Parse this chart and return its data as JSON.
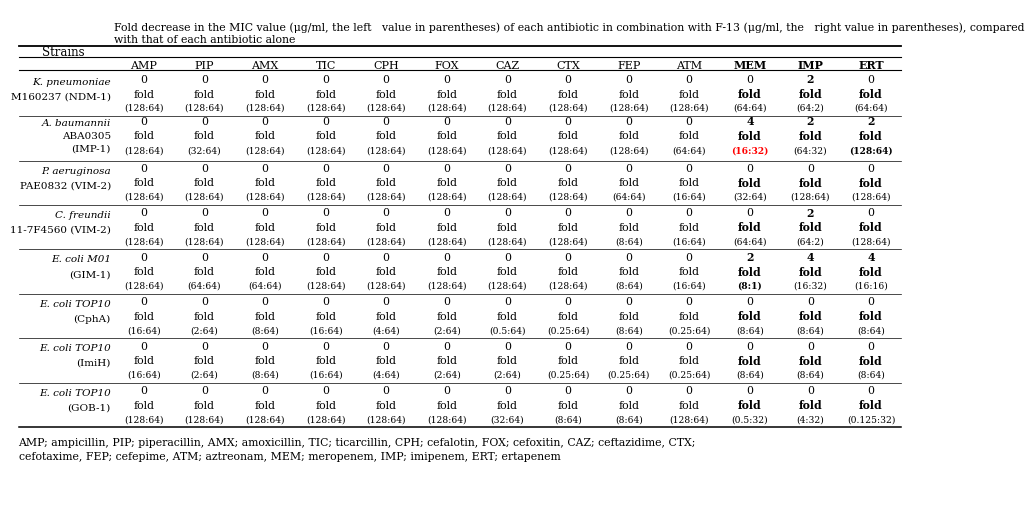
{
  "title_line1": "Fold decrease in the MIC value (μg/ml, the left   value in parentheses) of each antibiotic in combination with F-13 (μg/ml, the   right value in parentheses), compared",
  "title_line2": "with that of each antibiotic alone",
  "col_header": [
    "AMP",
    "PIP",
    "AMX",
    "TIC",
    "CPH",
    "FOX",
    "CAZ",
    "CTX",
    "FEP",
    "ATM",
    "MEM",
    "IMP",
    "ERT"
  ],
  "bold_cols": [
    "MEM",
    "IMP",
    "ERT"
  ],
  "strains": [
    [
      "K. pneumoniae",
      "M160237 (NDM-1)"
    ],
    [
      "A. baumannii",
      "ABA0305",
      "(IMP-1)"
    ],
    [
      "P. aeruginosa",
      "PAE0832 (VIM-2)"
    ],
    [
      "C. freundii",
      "11-7F4560 (VIM-2)"
    ],
    [
      "E. coli M01",
      "(GIM-1)"
    ],
    [
      "E. coli TOP10",
      "(CphA)"
    ],
    [
      "E. coli TOP10",
      "(ImiH)"
    ],
    [
      "E. coli TOP10",
      "(GOB-1)"
    ]
  ],
  "strain_italic": [
    [
      true,
      false
    ],
    [
      true,
      false,
      false
    ],
    [
      true,
      false
    ],
    [
      true,
      false
    ],
    [
      true,
      false
    ],
    [
      true,
      false
    ],
    [
      true,
      false
    ],
    [
      true,
      false
    ]
  ],
  "rows": [
    {
      "fold": [
        "0",
        "0",
        "0",
        "0",
        "0",
        "0",
        "0",
        "0",
        "0",
        "0",
        "0",
        "2",
        "0"
      ],
      "mic": [
        "(128:64)",
        "(128:64)",
        "(128:64)",
        "(128:64)",
        "(128:64)",
        "(128:64)",
        "(128:64)",
        "(128:64)",
        "(128:64)",
        "(128:64)",
        "(64:64)",
        "(64:2)",
        "(64:64)"
      ],
      "bold_fold": [
        false,
        false,
        false,
        false,
        false,
        false,
        false,
        false,
        false,
        false,
        false,
        true,
        false
      ],
      "bold_mic": [
        false,
        false,
        false,
        false,
        false,
        false,
        false,
        false,
        false,
        false,
        false,
        false,
        false
      ],
      "red_fold": [
        false,
        false,
        false,
        false,
        false,
        false,
        false,
        false,
        false,
        false,
        false,
        false,
        false
      ],
      "red_mic": [
        false,
        false,
        false,
        false,
        false,
        false,
        false,
        false,
        false,
        false,
        false,
        false,
        false
      ]
    },
    {
      "fold": [
        "0",
        "0",
        "0",
        "0",
        "0",
        "0",
        "0",
        "0",
        "0",
        "0",
        "4",
        "2",
        "2"
      ],
      "mic": [
        "(128:64)",
        "(32:64)",
        "(128:64)",
        "(128:64)",
        "(128:64)",
        "(128:64)",
        "(128:64)",
        "(128:64)",
        "(128:64)",
        "(64:64)",
        "(16:32)",
        "(64:32)",
        "(128:64)"
      ],
      "bold_fold": [
        false,
        false,
        false,
        false,
        false,
        false,
        false,
        false,
        false,
        false,
        true,
        true,
        true
      ],
      "bold_mic": [
        false,
        false,
        false,
        false,
        false,
        false,
        false,
        false,
        false,
        false,
        true,
        false,
        true
      ],
      "red_fold": [
        false,
        false,
        false,
        false,
        false,
        false,
        false,
        false,
        false,
        false,
        false,
        false,
        false
      ],
      "red_mic": [
        false,
        false,
        false,
        false,
        false,
        false,
        false,
        false,
        false,
        false,
        true,
        false,
        false
      ]
    },
    {
      "fold": [
        "0",
        "0",
        "0",
        "0",
        "0",
        "0",
        "0",
        "0",
        "0",
        "0",
        "0",
        "0",
        "0"
      ],
      "mic": [
        "(128:64)",
        "(128:64)",
        "(128:64)",
        "(128:64)",
        "(128:64)",
        "(128:64)",
        "(128:64)",
        "(128:64)",
        "(64:64)",
        "(16:64)",
        "(32:64)",
        "(128:64)",
        "(128:64)"
      ],
      "bold_fold": [
        false,
        false,
        false,
        false,
        false,
        false,
        false,
        false,
        false,
        false,
        false,
        false,
        false
      ],
      "bold_mic": [
        false,
        false,
        false,
        false,
        false,
        false,
        false,
        false,
        false,
        false,
        false,
        false,
        false
      ],
      "red_fold": [
        false,
        false,
        false,
        false,
        false,
        false,
        false,
        false,
        false,
        false,
        false,
        false,
        false
      ],
      "red_mic": [
        false,
        false,
        false,
        false,
        false,
        false,
        false,
        false,
        false,
        false,
        false,
        false,
        false
      ]
    },
    {
      "fold": [
        "0",
        "0",
        "0",
        "0",
        "0",
        "0",
        "0",
        "0",
        "0",
        "0",
        "0",
        "2",
        "0"
      ],
      "mic": [
        "(128:64)",
        "(128:64)",
        "(128:64)",
        "(128:64)",
        "(128:64)",
        "(128:64)",
        "(128:64)",
        "(128:64)",
        "(8:64)",
        "(16:64)",
        "(64:64)",
        "(64:2)",
        "(128:64)"
      ],
      "bold_fold": [
        false,
        false,
        false,
        false,
        false,
        false,
        false,
        false,
        false,
        false,
        false,
        true,
        false
      ],
      "bold_mic": [
        false,
        false,
        false,
        false,
        false,
        false,
        false,
        false,
        false,
        false,
        false,
        false,
        false
      ],
      "red_fold": [
        false,
        false,
        false,
        false,
        false,
        false,
        false,
        false,
        false,
        false,
        false,
        false,
        false
      ],
      "red_mic": [
        false,
        false,
        false,
        false,
        false,
        false,
        false,
        false,
        false,
        false,
        false,
        false,
        false
      ]
    },
    {
      "fold": [
        "0",
        "0",
        "0",
        "0",
        "0",
        "0",
        "0",
        "0",
        "0",
        "0",
        "2",
        "4",
        "4"
      ],
      "mic": [
        "(128:64)",
        "(64:64)",
        "(64:64)",
        "(128:64)",
        "(128:64)",
        "(128:64)",
        "(128:64)",
        "(128:64)",
        "(8:64)",
        "(16:64)",
        "(8:1)",
        "(16:32)",
        "(16:16)"
      ],
      "bold_fold": [
        false,
        false,
        false,
        false,
        false,
        false,
        false,
        false,
        false,
        false,
        true,
        true,
        true
      ],
      "bold_mic": [
        false,
        false,
        false,
        false,
        false,
        false,
        false,
        false,
        false,
        false,
        true,
        false,
        false
      ],
      "red_fold": [
        false,
        false,
        false,
        false,
        false,
        false,
        false,
        false,
        false,
        false,
        false,
        false,
        false
      ],
      "red_mic": [
        false,
        false,
        false,
        false,
        false,
        false,
        false,
        false,
        false,
        false,
        false,
        false,
        false
      ]
    },
    {
      "fold": [
        "0",
        "0",
        "0",
        "0",
        "0",
        "0",
        "0",
        "0",
        "0",
        "0",
        "0",
        "0",
        "0"
      ],
      "mic": [
        "(16:64)",
        "(2:64)",
        "(8:64)",
        "(16:64)",
        "(4:64)",
        "(2:64)",
        "(0.5:64)",
        "(0.25:64)",
        "(8:64)",
        "(0.25:64)",
        "(8:64)",
        "(8:64)",
        "(8:64)"
      ],
      "bold_fold": [
        false,
        false,
        false,
        false,
        false,
        false,
        false,
        false,
        false,
        false,
        false,
        false,
        false
      ],
      "bold_mic": [
        false,
        false,
        false,
        false,
        false,
        false,
        false,
        false,
        false,
        false,
        false,
        false,
        false
      ],
      "red_fold": [
        false,
        false,
        false,
        false,
        false,
        false,
        false,
        false,
        false,
        false,
        false,
        false,
        false
      ],
      "red_mic": [
        false,
        false,
        false,
        false,
        false,
        false,
        false,
        false,
        false,
        false,
        false,
        false,
        false
      ]
    },
    {
      "fold": [
        "0",
        "0",
        "0",
        "0",
        "0",
        "0",
        "0",
        "0",
        "0",
        "0",
        "0",
        "0",
        "0"
      ],
      "mic": [
        "(16:64)",
        "(2:64)",
        "(8:64)",
        "(16:64)",
        "(4:64)",
        "(2:64)",
        "(2:64)",
        "(0.25:64)",
        "(0.25:64)",
        "(0.25:64)",
        "(8:64)",
        "(8:64)",
        "(8:64)"
      ],
      "bold_fold": [
        false,
        false,
        false,
        false,
        false,
        false,
        false,
        false,
        false,
        false,
        false,
        false,
        false
      ],
      "bold_mic": [
        false,
        false,
        false,
        false,
        false,
        false,
        false,
        false,
        false,
        false,
        false,
        false,
        false
      ],
      "red_fold": [
        false,
        false,
        false,
        false,
        false,
        false,
        false,
        false,
        false,
        false,
        false,
        false,
        false
      ],
      "red_mic": [
        false,
        false,
        false,
        false,
        false,
        false,
        false,
        false,
        false,
        false,
        false,
        false,
        false
      ]
    },
    {
      "fold": [
        "0",
        "0",
        "0",
        "0",
        "0",
        "0",
        "0",
        "0",
        "0",
        "0",
        "0",
        "0",
        "0"
      ],
      "mic": [
        "(128:64)",
        "(128:64)",
        "(128:64)",
        "(128:64)",
        "(128:64)",
        "(128:64)",
        "(32:64)",
        "(8:64)",
        "(8:64)",
        "(128:64)",
        "(0.5:32)",
        "(4:32)",
        "(0.125:32)"
      ],
      "bold_fold": [
        false,
        false,
        false,
        false,
        false,
        false,
        false,
        false,
        false,
        false,
        false,
        false,
        false
      ],
      "bold_mic": [
        false,
        false,
        false,
        false,
        false,
        false,
        false,
        false,
        false,
        false,
        false,
        false,
        false
      ],
      "red_fold": [
        false,
        false,
        false,
        false,
        false,
        false,
        false,
        false,
        false,
        false,
        false,
        false,
        false
      ],
      "red_mic": [
        false,
        false,
        false,
        false,
        false,
        false,
        false,
        false,
        false,
        false,
        false,
        false,
        false
      ]
    }
  ],
  "footnote_line1": "AMP; ampicillin, PIP; piperacillin, AMX; amoxicillin, TIC; ticarcillin, CPH; cefalotin, FOX; cefoxitin, CAZ; ceftazidime, CTX;",
  "footnote_line2": "cefotaxime, FEP; cefepime, ATM; aztreonam, MEM; meropenem, IMP; imipenem, ERT; ertapenem"
}
